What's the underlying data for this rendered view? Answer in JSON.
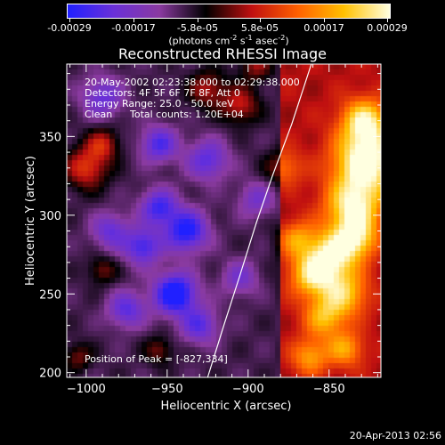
{
  "colorbar": {
    "tick_labels": [
      "-0.00029",
      "-0.00017",
      "-5.8e-05",
      "5.8e-05",
      "0.00017",
      "0.00029"
    ],
    "units_main": "(photons cm",
    "units_exp1": "-2",
    "units_mid": " s",
    "units_exp2": "-1",
    "units_mid2": " asec",
    "units_exp3": "-2",
    "units_end": ")",
    "colormap": [
      "#2020ff",
      "#6a30d8",
      "#8a3aa0",
      "#000000",
      "#c01010",
      "#ff6000",
      "#ffc000",
      "#ffffe0"
    ]
  },
  "chart_data": {
    "type": "heatmap",
    "title": "Reconstructed RHESSI Image",
    "xlabel": "Heliocentric X (arcsec)",
    "ylabel": "Heliocentric Y (arcsec)",
    "xlim": [
      -1012,
      -818
    ],
    "ylim": [
      197,
      396
    ],
    "xticks": [
      -1000,
      -950,
      -900,
      -850
    ],
    "xtick_labels": [
      "−1000",
      "−950",
      "−900",
      "−850"
    ],
    "yticks": [
      200,
      250,
      300,
      350
    ],
    "ytick_labels": [
      "200",
      "250",
      "300",
      "350"
    ],
    "value_range": [
      -0.00029,
      0.00029
    ],
    "peak": [
      -827,
      334
    ],
    "limb_curve": [
      [
        -925,
        197
      ],
      [
        -915,
        230
      ],
      [
        -905,
        262
      ],
      [
        -895,
        295
      ],
      [
        -885,
        325
      ],
      [
        -873,
        358
      ],
      [
        -861,
        396
      ]
    ]
  },
  "info": {
    "line1": "20-May-2002 02:23:38.000 to 02:29:38.000",
    "line2": "Detectors: 4F 5F 6F 7F 8F, Att 0",
    "line3": "Energy Range: 25.0 - 50.0 keV",
    "line4_a": "Clean",
    "line4_b": "Total counts: 1.20E+04",
    "peak_text": "Position of Peak = [-827,334]"
  },
  "timestamp": "20-Apr-2013 02:56"
}
